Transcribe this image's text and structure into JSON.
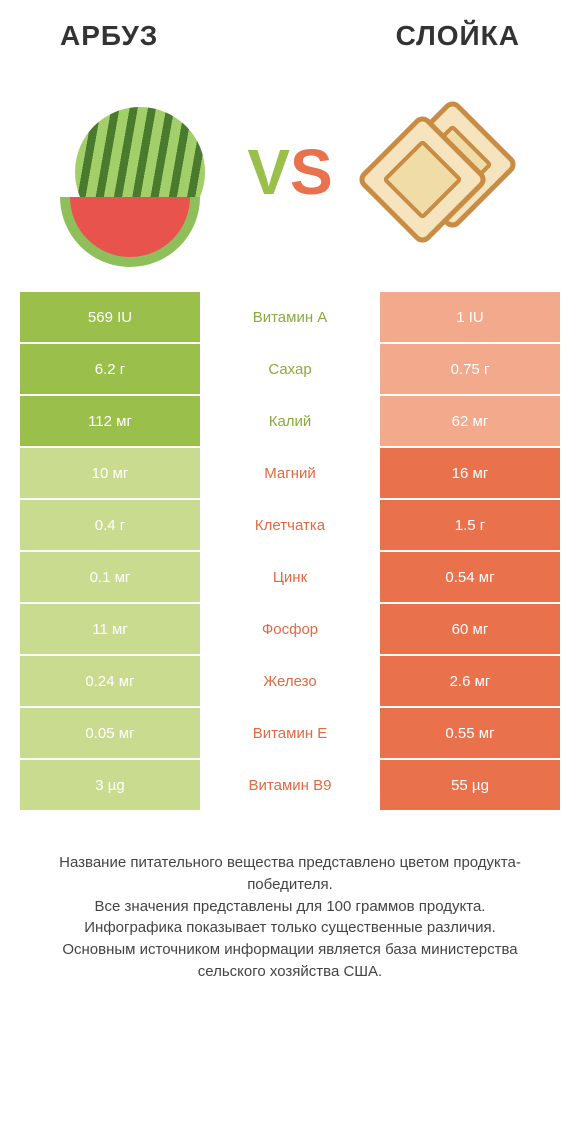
{
  "colors": {
    "green_dark": "#9abf4a",
    "green_light": "#c9db8e",
    "orange_dark": "#e9724d",
    "orange_light": "#f2a98c",
    "label_green": "#8aab3f",
    "label_orange": "#e06a42",
    "text": "#333333"
  },
  "header": {
    "left_title": "Арбуз",
    "right_title": "Слойка"
  },
  "vs": {
    "v": "V",
    "s": "S"
  },
  "rows": [
    {
      "left": "569 IU",
      "label": "Витамин A",
      "right": "1 IU",
      "winner": "left"
    },
    {
      "left": "6.2 г",
      "label": "Сахар",
      "right": "0.75 г",
      "winner": "left"
    },
    {
      "left": "112 мг",
      "label": "Калий",
      "right": "62 мг",
      "winner": "left"
    },
    {
      "left": "10 мг",
      "label": "Магний",
      "right": "16 мг",
      "winner": "right"
    },
    {
      "left": "0.4 г",
      "label": "Клетчатка",
      "right": "1.5 г",
      "winner": "right"
    },
    {
      "left": "0.1 мг",
      "label": "Цинк",
      "right": "0.54 мг",
      "winner": "right"
    },
    {
      "left": "11 мг",
      "label": "Фосфор",
      "right": "60 мг",
      "winner": "right"
    },
    {
      "left": "0.24 мг",
      "label": "Железо",
      "right": "2.6 мг",
      "winner": "right"
    },
    {
      "left": "0.05 мг",
      "label": "Витамин E",
      "right": "0.55 мг",
      "winner": "right"
    },
    {
      "left": "3 µg",
      "label": "Витамин B9",
      "right": "55 µg",
      "winner": "right"
    }
  ],
  "footer": {
    "line1": "Название питательного вещества представлено цветом продукта-победителя.",
    "line2": "Все значения представлены для 100 граммов продукта.",
    "line3": "Инфографика показывает только существенные различия.",
    "line4": "Основным источником информации является база министерства сельского хозяйства США."
  }
}
